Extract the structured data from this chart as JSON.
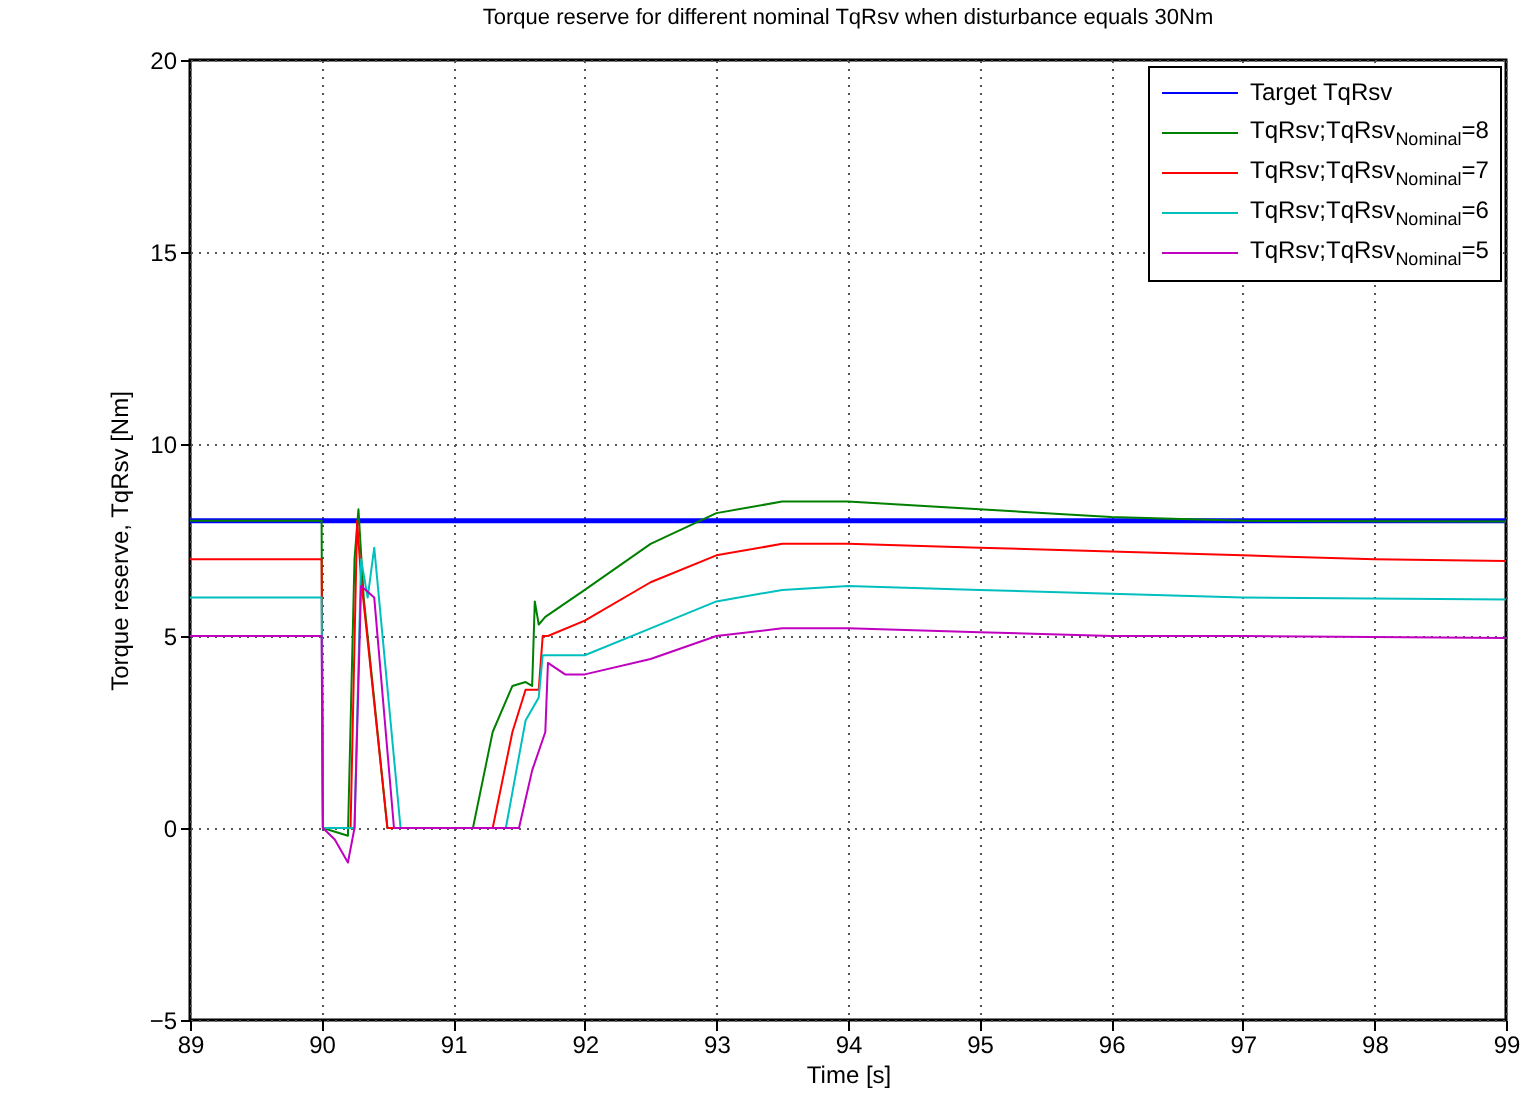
{
  "chart_data": {
    "type": "line",
    "title": "Torque reserve for different nominal TqRsv when disturbance equals 30Nm",
    "xlabel": "Time [s]",
    "ylabel": "Torque reserve, TqRsv [Nm]",
    "xlim": [
      89,
      99
    ],
    "ylim": [
      -5,
      20
    ],
    "xticks": [
      89,
      90,
      91,
      92,
      93,
      94,
      95,
      96,
      97,
      98,
      99
    ],
    "yticks": [
      -5,
      0,
      5,
      10,
      15,
      20
    ],
    "grid": true,
    "legend": "top right",
    "line_style": "solid",
    "series": [
      {
        "name": "Target TqRsv",
        "color": "#0000ff",
        "x": [
          89,
          99
        ],
        "values": [
          8,
          8
        ]
      },
      {
        "name": "TqRsv;TqRsv$_{Nominal}$=8",
        "color": "#008000",
        "x": [
          89,
          90,
          90.01,
          90.2,
          90.25,
          90.28,
          90.32,
          90.5,
          91.15,
          91.3,
          91.45,
          91.55,
          91.6,
          91.62,
          91.65,
          91.7,
          92,
          92.5,
          93,
          93.5,
          94,
          95,
          96,
          97,
          99
        ],
        "values": [
          8,
          8,
          0,
          -0.2,
          7,
          8.3,
          6,
          0,
          0,
          2.5,
          3.7,
          3.8,
          3.7,
          5.9,
          5.3,
          5.5,
          6.2,
          7.4,
          8.2,
          8.5,
          8.5,
          8.3,
          8.1,
          8,
          7.98
        ]
      },
      {
        "name": "TqRsv;TqRsv$_{Nominal}$=7",
        "color": "#ff0000",
        "x": [
          89,
          90,
          90.01,
          90.22,
          90.27,
          90.3,
          90.5,
          91.3,
          91.45,
          91.55,
          91.65,
          91.68,
          91.72,
          92,
          92.5,
          93,
          93.5,
          94,
          95,
          96,
          97,
          98,
          99
        ],
        "values": [
          7,
          7,
          0,
          0,
          8,
          6.5,
          0,
          0,
          2.5,
          3.6,
          3.6,
          5,
          5,
          5.4,
          6.4,
          7.1,
          7.4,
          7.4,
          7.3,
          7.2,
          7.1,
          7,
          6.95
        ]
      },
      {
        "name": "TqRsv;TqRsv$_{Nominal}$=6",
        "color": "#00bfbf",
        "x": [
          89,
          90,
          90.01,
          90.25,
          90.3,
          90.35,
          90.4,
          90.6,
          91.4,
          91.55,
          91.65,
          91.68,
          92,
          92.5,
          93,
          93.5,
          94,
          95,
          96,
          97,
          99
        ],
        "values": [
          6,
          6,
          0,
          0,
          7,
          6,
          7.3,
          0,
          0,
          2.8,
          3.4,
          4.5,
          4.5,
          5.2,
          5.9,
          6.2,
          6.3,
          6.2,
          6.1,
          6,
          5.95
        ]
      },
      {
        "name": "TqRsv;TqRsv$_{Nominal}$=5",
        "color": "#bf00bf",
        "x": [
          89,
          90,
          90.01,
          90.1,
          90.2,
          90.25,
          90.3,
          90.4,
          90.55,
          91.5,
          91.6,
          91.7,
          91.72,
          91.85,
          92,
          92.5,
          93,
          93.5,
          94,
          95,
          96,
          97,
          99
        ],
        "values": [
          5,
          5,
          0,
          -0.3,
          -0.9,
          0,
          6.3,
          6,
          0,
          0,
          1.5,
          2.5,
          4.3,
          4,
          4,
          4.4,
          5,
          5.2,
          5.2,
          5.1,
          5,
          5,
          4.95
        ]
      }
    ]
  }
}
